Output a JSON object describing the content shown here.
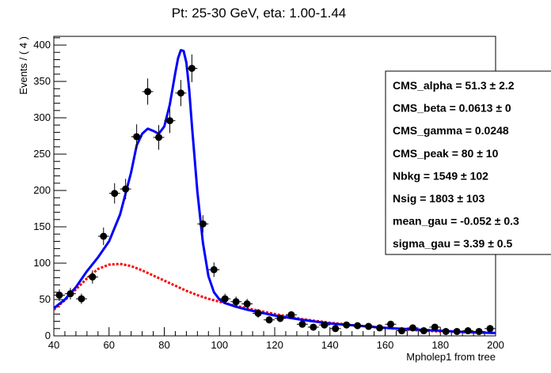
{
  "chart_data": {
    "type": "scatter",
    "title": "Pt: 25-30 GeV, eta: 1.00-1.44",
    "xlabel": "Mpholep1 from tree",
    "ylabel": "Events / ( 4 )",
    "xlim": [
      40,
      200
    ],
    "ylim": [
      0,
      412
    ],
    "x_ticks": [
      40,
      60,
      80,
      100,
      120,
      140,
      160,
      180,
      200
    ],
    "y_ticks": [
      0,
      50,
      100,
      150,
      200,
      250,
      300,
      350,
      400
    ],
    "series": [
      {
        "kind": "data-points",
        "color": "#000000",
        "x_err": 2,
        "x": [
          42,
          46,
          50,
          54,
          58,
          62,
          66,
          70,
          74,
          78,
          82,
          86,
          90,
          94,
          98,
          102,
          106,
          110,
          114,
          118,
          122,
          126,
          130,
          134,
          138,
          142,
          146,
          150,
          154,
          158,
          162,
          166,
          170,
          174,
          178,
          182,
          186,
          190,
          194,
          198
        ],
        "y": [
          56,
          58,
          51,
          81,
          137,
          196,
          202,
          274,
          336,
          273,
          296,
          334,
          368,
          154,
          91,
          51,
          47,
          44,
          31,
          22,
          24,
          29,
          16,
          12,
          15,
          10,
          15,
          14,
          13,
          11,
          16,
          7,
          11,
          7,
          12,
          6,
          6,
          7,
          6,
          10
        ],
        "y_err": [
          8,
          8,
          7,
          9,
          12,
          14,
          14,
          17,
          18,
          17,
          17,
          18,
          19,
          12,
          10,
          7,
          7,
          7,
          6,
          5,
          5,
          5,
          4,
          4,
          4,
          3,
          4,
          4,
          4,
          3,
          4,
          3,
          3,
          3,
          4,
          2,
          2,
          3,
          2,
          3
        ]
      },
      {
        "kind": "total-fit",
        "color": "#0000ff",
        "x": [
          40,
          44,
          48,
          52,
          56,
          60,
          64,
          68,
          70,
          72,
          74,
          76,
          78,
          80,
          82,
          84,
          85,
          86,
          87,
          88,
          89,
          90,
          92,
          94,
          96,
          98,
          100,
          102,
          106,
          110,
          120,
          130,
          140,
          150,
          160,
          170,
          180,
          190,
          200
        ],
        "y": [
          38,
          50,
          67,
          89,
          108,
          130,
          167,
          225,
          262,
          278,
          285,
          282,
          278,
          288,
          318,
          362,
          382,
          393,
          392,
          376,
          340,
          290,
          198,
          128,
          82,
          60,
          50,
          45,
          40,
          36,
          28,
          22,
          17,
          14,
          11,
          9,
          7,
          5,
          4
        ]
      },
      {
        "kind": "background-fit",
        "color": "#ff0000",
        "x": [
          40,
          44,
          48,
          52,
          56,
          60,
          64,
          68,
          72,
          76,
          80,
          84,
          88,
          92,
          96,
          100,
          105,
          110,
          120,
          130,
          140,
          150,
          160,
          170,
          180,
          190,
          200
        ],
        "y": [
          36,
          49,
          64,
          79,
          92,
          98,
          99,
          96,
          90,
          83,
          76,
          69,
          62,
          56,
          51,
          47,
          42,
          38,
          30,
          23,
          18,
          14,
          11,
          8,
          6,
          5,
          4
        ]
      }
    ],
    "legend": "none",
    "grid": false
  },
  "param_box": {
    "items": [
      "CMS_alpha =  51.3   ± 2.2",
      "CMS_beta =  0.0613   ± 0",
      "CMS_gamma =  0.0248",
      "CMS_peak =  80   ± 10",
      "Nbkg =  1549   ± 102",
      "Nsig =  1803   ± 103",
      "mean_gau = -0.052   ± 0.3",
      "sigma_gau =  3.39   ± 0.5"
    ]
  }
}
